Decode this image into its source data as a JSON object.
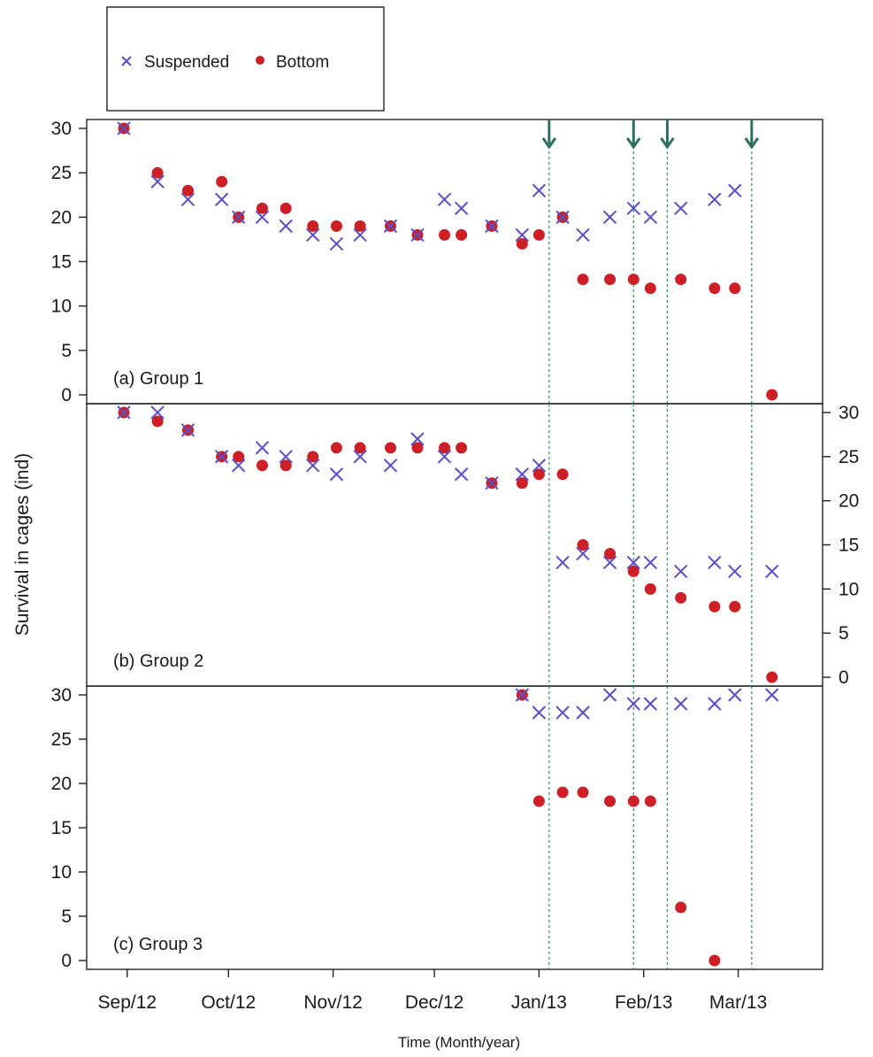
{
  "chart_data": {
    "type": "scatter",
    "title": "",
    "xlabel": "Time (Month/year)",
    "ylabel": "Survival in cages (ind)",
    "legend": {
      "placement": "top-left",
      "entries": [
        {
          "name": "Suspended",
          "marker": "cross"
        },
        {
          "name": "Bottom",
          "marker": "dot"
        }
      ]
    },
    "x_ticks": [
      "Sep/12",
      "Oct/12",
      "Nov/12",
      "Dec/12",
      "Jan/13",
      "Feb/13",
      "Mar/13"
    ],
    "x_tick_dates": [
      "2012-09-01",
      "2012-10-01",
      "2012-11-01",
      "2012-12-01",
      "2013-01-01",
      "2013-02-01",
      "2013-03-01"
    ],
    "xlim": [
      "2012-08-20",
      "2013-03-26"
    ],
    "event_dates": [
      "2013-01-04",
      "2013-01-29",
      "2013-02-08",
      "2013-03-05"
    ],
    "colors": {
      "suspended": "#5a4fc4",
      "bottom": "#cc1f26",
      "event": "#2f6f60"
    },
    "panels": [
      {
        "label": "(a) Group 1",
        "ylim": [
          -1,
          31
        ],
        "y_ticks": [
          0,
          5,
          10,
          15,
          20,
          25,
          30
        ],
        "y_axis_side": "left",
        "series": [
          {
            "name": "Suspended",
            "points": [
              [
                "2012-08-31",
                30
              ],
              [
                "2012-09-10",
                24
              ],
              [
                "2012-09-19",
                22
              ],
              [
                "2012-09-29",
                22
              ],
              [
                "2012-10-04",
                20
              ],
              [
                "2012-10-11",
                20
              ],
              [
                "2012-10-18",
                19
              ],
              [
                "2012-10-26",
                18
              ],
              [
                "2012-11-02",
                17
              ],
              [
                "2012-11-09",
                18
              ],
              [
                "2012-11-18",
                19
              ],
              [
                "2012-11-26",
                18
              ],
              [
                "2012-12-04",
                22
              ],
              [
                "2012-12-09",
                21
              ],
              [
                "2012-12-18",
                19
              ],
              [
                "2012-12-27",
                18
              ],
              [
                "2013-01-01",
                23
              ],
              [
                "2013-01-08",
                20
              ],
              [
                "2013-01-14",
                18
              ],
              [
                "2013-01-22",
                20
              ],
              [
                "2013-01-29",
                21
              ],
              [
                "2013-02-03",
                20
              ],
              [
                "2013-02-12",
                21
              ],
              [
                "2013-02-22",
                22
              ],
              [
                "2013-02-28",
                23
              ]
            ]
          },
          {
            "name": "Bottom",
            "points": [
              [
                "2012-08-31",
                30
              ],
              [
                "2012-09-10",
                25
              ],
              [
                "2012-09-19",
                23
              ],
              [
                "2012-09-29",
                24
              ],
              [
                "2012-10-04",
                20
              ],
              [
                "2012-10-11",
                21
              ],
              [
                "2012-10-18",
                21
              ],
              [
                "2012-10-26",
                19
              ],
              [
                "2012-11-02",
                19
              ],
              [
                "2012-11-09",
                19
              ],
              [
                "2012-11-18",
                19
              ],
              [
                "2012-11-26",
                18
              ],
              [
                "2012-12-04",
                18
              ],
              [
                "2012-12-09",
                18
              ],
              [
                "2012-12-18",
                19
              ],
              [
                "2012-12-27",
                17
              ],
              [
                "2013-01-01",
                18
              ],
              [
                "2013-01-08",
                20
              ],
              [
                "2013-01-14",
                13
              ],
              [
                "2013-01-22",
                13
              ],
              [
                "2013-01-29",
                13
              ],
              [
                "2013-02-03",
                12
              ],
              [
                "2013-02-12",
                13
              ],
              [
                "2013-02-22",
                12
              ],
              [
                "2013-02-28",
                12
              ],
              [
                "2013-03-11",
                0
              ]
            ]
          }
        ]
      },
      {
        "label": "(b) Group 2",
        "ylim": [
          -1,
          31
        ],
        "y_ticks": [
          0,
          5,
          10,
          15,
          20,
          25,
          30
        ],
        "y_axis_side": "right",
        "series": [
          {
            "name": "Suspended",
            "points": [
              [
                "2012-08-31",
                30
              ],
              [
                "2012-09-10",
                30
              ],
              [
                "2012-09-19",
                28
              ],
              [
                "2012-09-29",
                25
              ],
              [
                "2012-10-04",
                24
              ],
              [
                "2012-10-11",
                26
              ],
              [
                "2012-10-18",
                25
              ],
              [
                "2012-10-26",
                24
              ],
              [
                "2012-11-02",
                23
              ],
              [
                "2012-11-09",
                25
              ],
              [
                "2012-11-18",
                24
              ],
              [
                "2012-11-26",
                27
              ],
              [
                "2012-12-04",
                25
              ],
              [
                "2012-12-09",
                23
              ],
              [
                "2012-12-18",
                22
              ],
              [
                "2012-12-27",
                23
              ],
              [
                "2013-01-01",
                24
              ],
              [
                "2013-01-08",
                13
              ],
              [
                "2013-01-14",
                14
              ],
              [
                "2013-01-22",
                13
              ],
              [
                "2013-01-29",
                13
              ],
              [
                "2013-02-03",
                13
              ],
              [
                "2013-02-12",
                12
              ],
              [
                "2013-02-22",
                13
              ],
              [
                "2013-02-28",
                12
              ],
              [
                "2013-03-11",
                12
              ]
            ]
          },
          {
            "name": "Bottom",
            "points": [
              [
                "2012-08-31",
                30
              ],
              [
                "2012-09-10",
                29
              ],
              [
                "2012-09-19",
                28
              ],
              [
                "2012-09-29",
                25
              ],
              [
                "2012-10-04",
                25
              ],
              [
                "2012-10-11",
                24
              ],
              [
                "2012-10-18",
                24
              ],
              [
                "2012-10-26",
                25
              ],
              [
                "2012-11-02",
                26
              ],
              [
                "2012-11-09",
                26
              ],
              [
                "2012-11-18",
                26
              ],
              [
                "2012-11-26",
                26
              ],
              [
                "2012-12-04",
                26
              ],
              [
                "2012-12-09",
                26
              ],
              [
                "2012-12-18",
                22
              ],
              [
                "2012-12-27",
                22
              ],
              [
                "2013-01-01",
                23
              ],
              [
                "2013-01-08",
                23
              ],
              [
                "2013-01-14",
                15
              ],
              [
                "2013-01-22",
                14
              ],
              [
                "2013-01-29",
                12
              ],
              [
                "2013-02-03",
                10
              ],
              [
                "2013-02-12",
                9
              ],
              [
                "2013-02-22",
                8
              ],
              [
                "2013-02-28",
                8
              ],
              [
                "2013-03-11",
                0
              ]
            ]
          }
        ]
      },
      {
        "label": "(c) Group 3",
        "ylim": [
          -1,
          31
        ],
        "y_ticks": [
          0,
          5,
          10,
          15,
          20,
          25,
          30
        ],
        "y_axis_side": "left",
        "series": [
          {
            "name": "Suspended",
            "points": [
              [
                "2012-12-27",
                30
              ],
              [
                "2013-01-01",
                28
              ],
              [
                "2013-01-08",
                28
              ],
              [
                "2013-01-14",
                28
              ],
              [
                "2013-01-22",
                30
              ],
              [
                "2013-01-29",
                29
              ],
              [
                "2013-02-03",
                29
              ],
              [
                "2013-02-12",
                29
              ],
              [
                "2013-02-22",
                29
              ],
              [
                "2013-02-28",
                30
              ],
              [
                "2013-03-11",
                30
              ]
            ]
          },
          {
            "name": "Bottom",
            "points": [
              [
                "2012-12-27",
                30
              ],
              [
                "2013-01-01",
                18
              ],
              [
                "2013-01-08",
                19
              ],
              [
                "2013-01-14",
                19
              ],
              [
                "2013-01-22",
                18
              ],
              [
                "2013-01-29",
                18
              ],
              [
                "2013-02-03",
                18
              ],
              [
                "2013-02-12",
                6
              ],
              [
                "2013-02-22",
                0
              ]
            ]
          }
        ]
      }
    ]
  }
}
